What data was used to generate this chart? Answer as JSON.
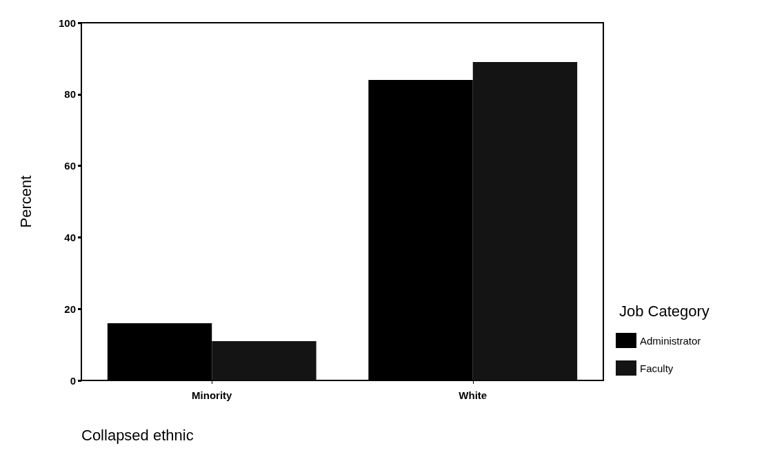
{
  "chart_data": {
    "type": "bar",
    "xlabel": "Collapsed ethnic",
    "ylabel": "Percent",
    "legend_title": "Job Category",
    "categories": [
      "Minority",
      "White"
    ],
    "series": [
      {
        "name": "Administrator",
        "color": "#000000",
        "values": [
          16,
          84
        ]
      },
      {
        "name": "Faculty",
        "color": "#141414",
        "values": [
          11,
          89
        ]
      }
    ],
    "ylim": [
      0,
      100
    ],
    "yticks": [
      0,
      20,
      40,
      60,
      80,
      100
    ],
    "grid": false,
    "legend": "right"
  }
}
